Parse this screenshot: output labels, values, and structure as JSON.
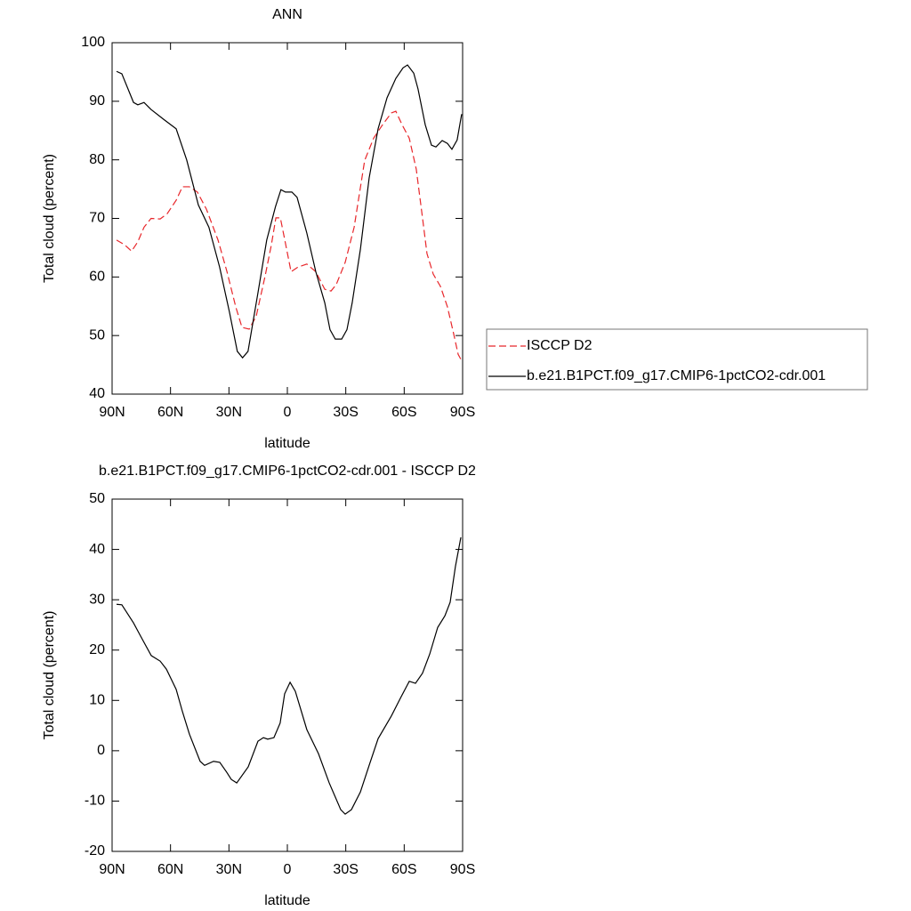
{
  "chart_data": [
    {
      "type": "line",
      "title": "ANN",
      "y_label": "Total cloud (percent)",
      "x_label": "latitude",
      "xlim": [
        90,
        -90
      ],
      "xticks": [
        {
          "value": 90,
          "label": "90N"
        },
        {
          "value": 60,
          "label": "60N"
        },
        {
          "value": 30,
          "label": "30N"
        },
        0,
        {
          "value": -30,
          "label": "30S"
        },
        {
          "value": -60,
          "label": "60S"
        },
        {
          "value": -90,
          "label": "90S"
        }
      ],
      "ylim": [
        40,
        100
      ],
      "yticks": [
        40,
        50,
        60,
        70,
        80,
        90,
        100
      ],
      "series": [
        {
          "name": "ISCCP D2",
          "color": "#e8262a",
          "linestyle": "dashed",
          "x": [
            87.7,
            83.6,
            80,
            76.8,
            73.6,
            70,
            65.3,
            61.7,
            57.1,
            53.9,
            50.3,
            46.2,
            41.6,
            35.6,
            31,
            26.5,
            23.3,
            19.6,
            16,
            11.4,
            8.2,
            5.9,
            3.6,
            1.3,
            -1.9,
            -5.5,
            -10,
            -14.6,
            -19.2,
            -22.4,
            -25.1,
            -29.7,
            -34.3,
            -39.7,
            -44.3,
            -48.9,
            -53.4,
            -55.7,
            -58.9,
            -62.6,
            -66.2,
            -69.4,
            -71.7,
            -74.9,
            -78.6,
            -82.2,
            -85.4,
            -87.7,
            -89.5
          ],
          "values": [
            66.3,
            65.5,
            64.4,
            66,
            68.5,
            70,
            69.9,
            70.8,
            73.1,
            75.4,
            75.4,
            74.5,
            71.6,
            66.3,
            60.9,
            54.9,
            51.4,
            51.1,
            53.3,
            60.2,
            65.5,
            70.1,
            70.1,
            66.3,
            60.9,
            61.7,
            62.2,
            60.9,
            57.9,
            57.6,
            58.7,
            62.5,
            68.5,
            79.9,
            83.7,
            86,
            88,
            88.3,
            86,
            83.7,
            78.4,
            70.1,
            64,
            60.5,
            58.4,
            54.9,
            50.3,
            46.8,
            45.7
          ]
        },
        {
          "name": "b.e21.B1PCT.f09_g17.CMIP6-1pctCO2-cdr.001",
          "color": "#000000",
          "linestyle": "solid",
          "x": [
            87.7,
            85,
            79,
            76.8,
            73.6,
            70,
            63.1,
            57.1,
            51.7,
            45.7,
            40.3,
            34.8,
            29.8,
            25.7,
            23,
            20.2,
            15.2,
            10.6,
            6.1,
            3.3,
            1,
            -2.3,
            -5,
            -10,
            -14.6,
            -19.2,
            -21.9,
            -24.6,
            -27.9,
            -30.6,
            -33.3,
            -37.5,
            -42,
            -46.6,
            -51.2,
            -55.7,
            -59.4,
            -61.7,
            -64.9,
            -67.1,
            -70.8,
            -74,
            -76.3,
            -79.5,
            -82.2,
            -84.5,
            -87.2,
            -89.5
          ],
          "values": [
            95.1,
            94.7,
            89.8,
            89.4,
            89.8,
            88.6,
            86.8,
            85.3,
            80,
            72.3,
            68.5,
            61.7,
            54.1,
            47.3,
            46.2,
            47.3,
            57.1,
            66.3,
            72,
            74.9,
            74.5,
            74.5,
            73.6,
            67.5,
            60.9,
            55.6,
            51,
            49.4,
            49.4,
            51,
            55.6,
            64.7,
            76.9,
            85.3,
            90.6,
            93.9,
            95.7,
            96.2,
            94.8,
            92.1,
            86,
            82.5,
            82.2,
            83.3,
            82.8,
            81.8,
            83.4,
            87.8
          ]
        }
      ]
    },
    {
      "type": "line",
      "title": "b.e21.B1PCT.f09_g17.CMIP6-1pctCO2-cdr.001 - ISCCP D2",
      "y_label": "Total cloud (percent)",
      "x_label": "latitude",
      "xlim": [
        90,
        -90
      ],
      "xticks": [
        {
          "value": 90,
          "label": "90N"
        },
        {
          "value": 60,
          "label": "60N"
        },
        {
          "value": 30,
          "label": "30N"
        },
        0,
        {
          "value": -30,
          "label": "30S"
        },
        {
          "value": -60,
          "label": "60S"
        },
        {
          "value": -90,
          "label": "90S"
        }
      ],
      "ylim": [
        -20,
        50
      ],
      "yticks": [
        -20,
        -10,
        0,
        10,
        20,
        30,
        40,
        50
      ],
      "color": "#000000",
      "x": [
        87.7,
        85,
        79,
        75.4,
        69.9,
        65.3,
        62.1,
        57.1,
        53.9,
        50.3,
        44.8,
        42.5,
        37.9,
        34.7,
        31.1,
        28.8,
        26,
        20.1,
        15.1,
        12.3,
        10.1,
        6.9,
        3.7,
        1.4,
        -1.4,
        -4.1,
        -10,
        -16,
        -21.5,
        -27.4,
        -29.7,
        -32.9,
        -37.5,
        -42,
        -46.6,
        -53.4,
        -58,
        -62.6,
        -65.8,
        -69.4,
        -73.1,
        -77.2,
        -80.9,
        -83.6,
        -86.3,
        -89.1
      ],
      "values": [
        29.1,
        29,
        25.4,
        22.8,
        18.9,
        17.8,
        16.2,
        12.2,
        7.8,
        3.3,
        -2.1,
        -2.9,
        -2.1,
        -2.3,
        -4.3,
        -5.7,
        -6.4,
        -3.2,
        1.9,
        2.6,
        2.3,
        2.6,
        5.5,
        11.3,
        13.6,
        11.8,
        4.2,
        -0.6,
        -6.4,
        -11.7,
        -12.6,
        -11.7,
        -8.2,
        -2.9,
        2.4,
        6.9,
        10.4,
        13.8,
        13.4,
        15.4,
        19.2,
        24.5,
        26.8,
        29.5,
        36.6,
        42.4
      ]
    }
  ]
}
